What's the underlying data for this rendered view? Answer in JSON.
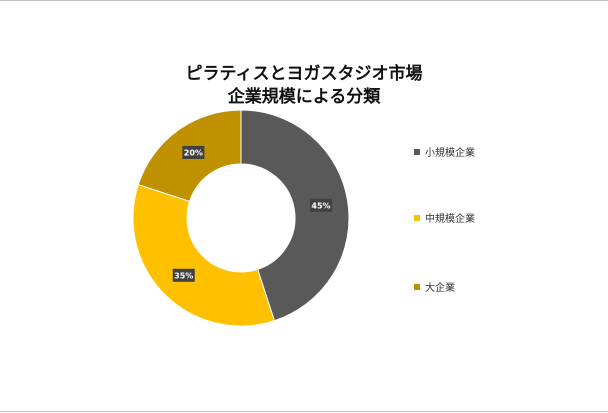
{
  "chart_data": {
    "type": "pie",
    "title": [
      "ピラティスとヨガスタジオ市場",
      "企業規模による分類"
    ],
    "categories": [
      "小規模企業",
      "中規模企業",
      "大企業"
    ],
    "values": [
      45,
      35,
      20
    ],
    "labels": [
      "45%",
      "35%",
      "20%"
    ],
    "colors": [
      "#595959",
      "#ffc000",
      "#bf9000"
    ],
    "legend_position": "right"
  }
}
